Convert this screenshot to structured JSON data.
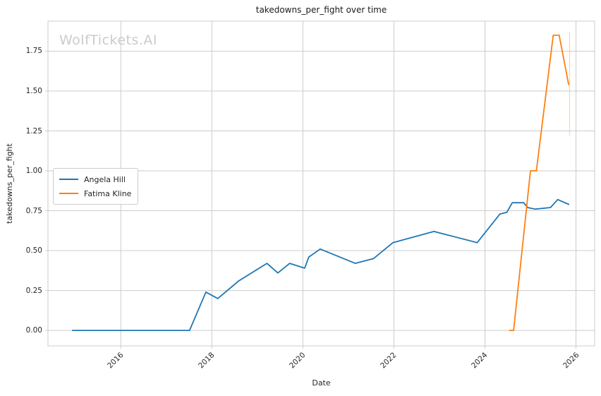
{
  "watermark": {
    "text": "WolfTickets.AI"
  },
  "chart_data": {
    "type": "line",
    "title": "takedowns_per_fight over time",
    "xlabel": "Date",
    "ylabel": "takedowns_per_fight",
    "grid": true,
    "legend_position": "center-left",
    "xlim": [
      2014.4,
      2026.41
    ],
    "ylim": [
      -0.097,
      1.938
    ],
    "x_tick_values": [
      2016,
      2018,
      2020,
      2022,
      2024,
      2026
    ],
    "x_tick_labels": [
      "2016",
      "2018",
      "2020",
      "2022",
      "2024",
      "2026"
    ],
    "y_tick_values": [
      0.0,
      0.25,
      0.5,
      0.75,
      1.0,
      1.25,
      1.5,
      1.75
    ],
    "y_tick_labels": [
      "0.00",
      "0.25",
      "0.50",
      "0.75",
      "1.00",
      "1.25",
      "1.50",
      "1.75"
    ],
    "series": [
      {
        "name": "Angela Hill",
        "color": "#1f77b4",
        "points": [
          [
            2014.94,
            0.0
          ],
          [
            2015.5,
            0.0
          ],
          [
            2016.2,
            0.0
          ],
          [
            2016.9,
            0.0
          ],
          [
            2017.51,
            0.0
          ],
          [
            2017.87,
            0.24
          ],
          [
            2018.13,
            0.2
          ],
          [
            2018.59,
            0.31
          ],
          [
            2019.21,
            0.42
          ],
          [
            2019.45,
            0.36
          ],
          [
            2019.71,
            0.42
          ],
          [
            2020.04,
            0.39
          ],
          [
            2020.13,
            0.46
          ],
          [
            2020.38,
            0.51
          ],
          [
            2021.15,
            0.42
          ],
          [
            2021.55,
            0.45
          ],
          [
            2021.98,
            0.55
          ],
          [
            2022.88,
            0.62
          ],
          [
            2023.83,
            0.55
          ],
          [
            2024.33,
            0.73
          ],
          [
            2024.48,
            0.74
          ],
          [
            2024.6,
            0.8
          ],
          [
            2024.85,
            0.8
          ],
          [
            2024.94,
            0.77
          ],
          [
            2025.1,
            0.76
          ],
          [
            2025.44,
            0.77
          ],
          [
            2025.6,
            0.82
          ],
          [
            2025.84,
            0.79
          ]
        ]
      },
      {
        "name": "Fatima Kline",
        "color": "#ff7f0e",
        "points": [
          [
            2024.54,
            0.0
          ],
          [
            2024.63,
            0.0
          ],
          [
            2025.0,
            1.0
          ],
          [
            2025.13,
            1.0
          ],
          [
            2025.5,
            1.85
          ],
          [
            2025.63,
            1.85
          ],
          [
            2025.84,
            1.54
          ]
        ],
        "error_bars": [
          {
            "x": 2025.86,
            "y_low": 1.22,
            "y_high": 1.87
          }
        ]
      }
    ]
  }
}
